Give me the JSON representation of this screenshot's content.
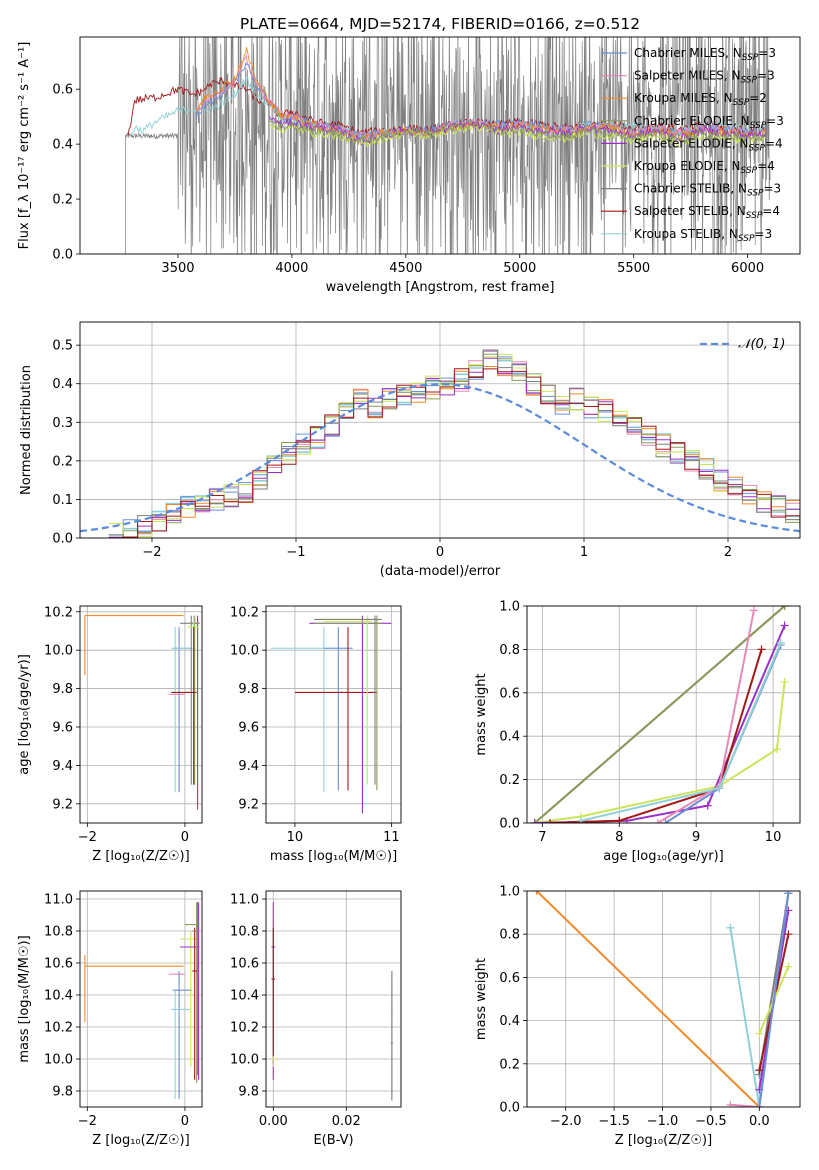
{
  "figure": {
    "title": "PLATE=0664, MJD=52174, FIBERID=0166, z=0.512"
  },
  "colors": {
    "chabrier_miles": "#6b8fd6",
    "salpeter_miles": "#e88ab8",
    "kroupa_miles": "#f08a2a",
    "chabrier_elodie": "#8a9a5b",
    "salpeter_elodie": "#9b30c8",
    "kroupa_elodie": "#c9e65a",
    "chabrier_stelib": "#7f7f7f",
    "salpeter_stelib": "#a01818",
    "kroupa_stelib": "#8fd0d8",
    "normal_curve": "#5b8bd9"
  },
  "chart_data": [
    {
      "id": "spectrum",
      "type": "line",
      "xlabel": "wavelength [Angstrom, rest frame]",
      "ylabel": "Flux [f_λ 10⁻¹⁷ erg cm⁻² s⁻¹ A⁻¹]",
      "xlim": [
        3070,
        6230
      ],
      "ylim": [
        0,
        0.79
      ],
      "xticks": [
        3500,
        4000,
        4500,
        5000,
        5500,
        6000
      ],
      "yticks": [
        0.0,
        0.2,
        0.4,
        0.6
      ],
      "grid": false,
      "legend_position": "top-right",
      "legend": [
        {
          "label": "Chabrier MILES, N",
          "sub": "SSP",
          "suffix": "=3",
          "color_key": "chabrier_miles"
        },
        {
          "label": "Salpeter MILES, N",
          "sub": "SSP",
          "suffix": "=3",
          "color_key": "salpeter_miles"
        },
        {
          "label": "Kroupa MILES, N",
          "sub": "SSP",
          "suffix": "=2",
          "color_key": "kroupa_miles"
        },
        {
          "label": "Chabrier ELODIE, N",
          "sub": "SSP",
          "suffix": "=3",
          "color_key": "chabrier_elodie"
        },
        {
          "label": "Salpeter ELODIE, N",
          "sub": "SSP",
          "suffix": "=4",
          "color_key": "salpeter_elodie"
        },
        {
          "label": "Kroupa ELODIE, N",
          "sub": "SSP",
          "suffix": "=4",
          "color_key": "kroupa_elodie"
        },
        {
          "label": "Chabrier STELIB, N",
          "sub": "SSP",
          "suffix": "=3",
          "color_key": "chabrier_stelib"
        },
        {
          "label": "Salpeter STELIB, N",
          "sub": "SSP",
          "suffix": "=4",
          "color_key": "salpeter_stelib"
        },
        {
          "label": "Kroupa STELIB, N",
          "sub": "SSP",
          "suffix": "=3",
          "color_key": "kroupa_stelib"
        }
      ],
      "models": [
        {
          "color_key": "salpeter_stelib",
          "x": [
            3280,
            3310,
            3400,
            3500,
            3560,
            3600,
            3650,
            3700,
            3750,
            3800,
            3850,
            3900,
            3950,
            4000,
            4100,
            4200,
            4300,
            4400,
            4500,
            4600,
            4700,
            4800,
            4900,
            5000,
            5100,
            5200,
            5300,
            5400,
            5500,
            5600,
            5700,
            5800,
            5900,
            6000,
            6080
          ],
          "y": [
            0.42,
            0.56,
            0.57,
            0.6,
            0.58,
            0.59,
            0.62,
            0.63,
            0.61,
            0.6,
            0.56,
            0.55,
            0.5,
            0.52,
            0.48,
            0.47,
            0.44,
            0.45,
            0.46,
            0.45,
            0.47,
            0.48,
            0.47,
            0.48,
            0.47,
            0.46,
            0.47,
            0.47,
            0.46,
            0.47,
            0.45,
            0.47,
            0.46,
            0.45,
            0.46
          ]
        },
        {
          "color_key": "kroupa_stelib",
          "x": [
            3280,
            3310,
            3350,
            3400,
            3500,
            3560,
            3600,
            3650,
            3700,
            3750,
            3800,
            3850,
            3900,
            3950,
            4000,
            4100,
            4200,
            4300,
            4400,
            4500,
            4600,
            4700,
            4800,
            4900,
            5000,
            5100,
            5200,
            5300,
            5400,
            5500,
            5600,
            5700,
            5800,
            5900,
            6000,
            6080
          ],
          "y": [
            0.42,
            0.46,
            0.45,
            0.48,
            0.52,
            0.53,
            0.52,
            0.53,
            0.55,
            0.58,
            0.64,
            0.57,
            0.55,
            0.5,
            0.49,
            0.47,
            0.46,
            0.43,
            0.44,
            0.45,
            0.44,
            0.47,
            0.48,
            0.46,
            0.47,
            0.46,
            0.45,
            0.47,
            0.47,
            0.46,
            0.46,
            0.44,
            0.47,
            0.47,
            0.45,
            0.46
          ]
        },
        {
          "color_key": "chabrier_miles",
          "x": [
            3580,
            3620,
            3700,
            3750,
            3800,
            3850,
            3900,
            3950,
            4000,
            4100,
            4200,
            4300,
            4400,
            4500,
            4600,
            4700,
            4800,
            4900,
            5000,
            5100,
            5200,
            5300,
            5400,
            5500,
            5600,
            5700,
            5800,
            5900,
            6000,
            6080
          ],
          "y": [
            0.5,
            0.55,
            0.58,
            0.62,
            0.7,
            0.6,
            0.56,
            0.5,
            0.5,
            0.47,
            0.46,
            0.43,
            0.44,
            0.45,
            0.45,
            0.47,
            0.48,
            0.47,
            0.48,
            0.47,
            0.45,
            0.47,
            0.46,
            0.44,
            0.46,
            0.44,
            0.46,
            0.46,
            0.44,
            0.45
          ]
        },
        {
          "color_key": "salpeter_miles",
          "x": [
            3580,
            3620,
            3700,
            3750,
            3800,
            3850,
            3900,
            3950,
            4000,
            4100,
            4200,
            4300,
            4400,
            4500,
            4600,
            4700,
            4800,
            4900,
            5000,
            5100,
            5200,
            5300,
            5400,
            5500,
            5600,
            5700,
            5800,
            5900,
            6000,
            6080
          ],
          "y": [
            0.52,
            0.56,
            0.6,
            0.63,
            0.71,
            0.61,
            0.56,
            0.51,
            0.5,
            0.47,
            0.46,
            0.43,
            0.44,
            0.45,
            0.44,
            0.47,
            0.48,
            0.46,
            0.47,
            0.46,
            0.45,
            0.46,
            0.46,
            0.44,
            0.46,
            0.44,
            0.46,
            0.45,
            0.44,
            0.45
          ]
        },
        {
          "color_key": "kroupa_miles",
          "x": [
            3580,
            3620,
            3700,
            3750,
            3800,
            3850,
            3900,
            3950,
            4000,
            4100,
            4200,
            4300,
            4400,
            4500,
            4600,
            4700,
            4800,
            4900,
            5000,
            5100,
            5200,
            5300,
            5400,
            5500,
            5600,
            5700,
            5800,
            5900,
            6000,
            6080
          ],
          "y": [
            0.52,
            0.57,
            0.61,
            0.64,
            0.74,
            0.62,
            0.56,
            0.5,
            0.5,
            0.47,
            0.45,
            0.42,
            0.44,
            0.45,
            0.44,
            0.46,
            0.47,
            0.46,
            0.47,
            0.46,
            0.44,
            0.46,
            0.46,
            0.43,
            0.45,
            0.43,
            0.45,
            0.45,
            0.43,
            0.44
          ]
        },
        {
          "color_key": "salpeter_elodie",
          "x": [
            3900,
            3950,
            4000,
            4100,
            4200,
            4300,
            4400,
            4500,
            4600,
            4700,
            4800,
            4900,
            5000,
            5100,
            5200,
            5300,
            5400,
            5500,
            5600,
            5700,
            5800,
            5900,
            6000,
            6080
          ],
          "y": [
            0.5,
            0.47,
            0.48,
            0.46,
            0.45,
            0.41,
            0.43,
            0.45,
            0.44,
            0.46,
            0.47,
            0.45,
            0.46,
            0.45,
            0.44,
            0.46,
            0.45,
            0.43,
            0.45,
            0.42,
            0.45,
            0.44,
            0.43,
            0.44
          ]
        },
        {
          "color_key": "kroupa_elodie",
          "x": [
            3900,
            3950,
            4000,
            4100,
            4200,
            4300,
            4400,
            4500,
            4600,
            4700,
            4800,
            4900,
            5000,
            5100,
            5200,
            5300,
            5400,
            5500,
            5600,
            5700,
            5800,
            5900,
            6000,
            6080
          ],
          "y": [
            0.48,
            0.45,
            0.46,
            0.44,
            0.43,
            0.4,
            0.42,
            0.44,
            0.43,
            0.45,
            0.46,
            0.44,
            0.44,
            0.43,
            0.42,
            0.44,
            0.43,
            0.41,
            0.43,
            0.4,
            0.43,
            0.42,
            0.41,
            0.42
          ]
        },
        {
          "color_key": "chabrier_elodie",
          "x": [
            3900,
            3950,
            4000,
            4100,
            4200,
            4300,
            4400,
            4500,
            4600,
            4700,
            4800,
            4900,
            5000,
            5100,
            5200,
            5300,
            5400,
            5500,
            5600,
            5700,
            5800,
            5900,
            6000,
            6080
          ],
          "y": [
            0.49,
            0.46,
            0.47,
            0.45,
            0.44,
            0.41,
            0.43,
            0.45,
            0.44,
            0.46,
            0.47,
            0.45,
            0.45,
            0.44,
            0.43,
            0.45,
            0.44,
            0.42,
            0.44,
            0.41,
            0.44,
            0.43,
            0.42,
            0.43
          ]
        }
      ],
      "noise_line": {
        "color_key": "chabrier_stelib",
        "x_range": [
          3270,
          6100
        ],
        "baseline": 0.45,
        "amplitude": 0.4
      }
    },
    {
      "id": "residuals",
      "type": "area",
      "xlabel": "(data-model)/error",
      "ylabel": "Normed distribution",
      "xlim": [
        -2.5,
        2.5
      ],
      "ylim": [
        0,
        0.56
      ],
      "xticks": [
        -2,
        -1,
        0,
        1,
        2
      ],
      "yticks": [
        0.0,
        0.1,
        0.2,
        0.3,
        0.4,
        0.5
      ],
      "grid": true,
      "legend_position": "top-right",
      "curve_label": "𝒩(0, 1)",
      "curve_color_key": "normal_curve",
      "bin_width": 0.1,
      "bin_start": -2.3,
      "base_hist": [
        0.01,
        0.02,
        0.03,
        0.04,
        0.06,
        0.08,
        0.09,
        0.1,
        0.11,
        0.12,
        0.15,
        0.19,
        0.22,
        0.24,
        0.26,
        0.29,
        0.33,
        0.36,
        0.34,
        0.36,
        0.37,
        0.38,
        0.39,
        0.4,
        0.41,
        0.44,
        0.46,
        0.45,
        0.43,
        0.4,
        0.37,
        0.35,
        0.36,
        0.34,
        0.33,
        0.31,
        0.29,
        0.27,
        0.24,
        0.22,
        0.2,
        0.18,
        0.15,
        0.13,
        0.11,
        0.09,
        0.08,
        0.07,
        0.05,
        0.04
      ]
    },
    {
      "id": "age_vs_Z",
      "type": "scatter",
      "xlabel": "Z [log₁₀(Z/Z☉)]",
      "ylabel": "age  [log₁₀(age/yr)]",
      "xlim": [
        -2.15,
        0.35
      ],
      "ylim": [
        9.1,
        10.23
      ],
      "xticks": [
        -2,
        0
      ],
      "yticks": [
        9.2,
        9.4,
        9.6,
        9.8,
        10.0,
        10.2
      ],
      "grid": true
    },
    {
      "id": "age_vs_mass",
      "type": "scatter",
      "xlabel": "mass [log₁₀(M/M☉)]",
      "ylabel": "",
      "xlim": [
        9.7,
        11.1
      ],
      "ylim": [
        9.1,
        10.23
      ],
      "xticks": [
        10,
        11
      ],
      "yticks": [
        9.2,
        9.4,
        9.6,
        9.8,
        10.0,
        10.2
      ],
      "grid": true
    },
    {
      "id": "mass_weight_vs_age",
      "type": "line",
      "xlabel": "age  [log₁₀(age/yr)]",
      "ylabel": "mass weight",
      "xlim": [
        6.8,
        10.35
      ],
      "ylim": [
        0,
        1.0
      ],
      "xticks": [
        7,
        8,
        9,
        10
      ],
      "yticks": [
        0.0,
        0.2,
        0.4,
        0.6,
        0.8,
        1.0
      ],
      "grid": true,
      "series": [
        {
          "color_key": "chabrier_stelib",
          "x": [
            6.9,
            10.15
          ],
          "y": [
            0.0,
            1.0
          ]
        },
        {
          "color_key": "chabrier_elodie",
          "x": [
            6.9,
            10.15
          ],
          "y": [
            0.0,
            1.0
          ]
        },
        {
          "color_key": "kroupa_elodie",
          "x": [
            6.9,
            7.5,
            9.3,
            10.05,
            10.15
          ],
          "y": [
            0.0,
            0.03,
            0.17,
            0.34,
            0.65
          ]
        },
        {
          "color_key": "salpeter_elodie",
          "x": [
            6.9,
            8.1,
            9.15,
            10.15
          ],
          "y": [
            0.0,
            0.01,
            0.08,
            0.91
          ]
        },
        {
          "color_key": "salpeter_stelib",
          "x": [
            7.1,
            8.0,
            9.3,
            9.85
          ],
          "y": [
            0.0,
            0.01,
            0.16,
            0.8
          ]
        },
        {
          "color_key": "chabrier_miles",
          "x": [
            8.6,
            9.3,
            10.1
          ],
          "y": [
            0.0,
            0.16,
            0.82
          ]
        },
        {
          "color_key": "salpeter_miles",
          "x": [
            8.5,
            9.3,
            9.75
          ],
          "y": [
            0.0,
            0.17,
            0.98
          ]
        },
        {
          "color_key": "kroupa_stelib",
          "x": [
            7.5,
            9.3,
            10.1
          ],
          "y": [
            0.01,
            0.16,
            0.83
          ]
        }
      ]
    },
    {
      "id": "mass_vs_Z",
      "type": "scatter",
      "xlabel": "Z [log₁₀(Z/Z☉)]",
      "ylabel": "mass [log₁₀(M/M☉)]",
      "xlim": [
        -2.15,
        0.35
      ],
      "ylim": [
        9.7,
        11.05
      ],
      "xticks": [
        -2,
        0
      ],
      "yticks": [
        9.8,
        10.0,
        10.2,
        10.4,
        10.6,
        10.8,
        11.0
      ],
      "grid": true
    },
    {
      "id": "mass_vs_ebv",
      "type": "scatter",
      "xlabel": "E(B-V)",
      "ylabel": "",
      "xlim": [
        -0.002,
        0.035
      ],
      "ylim": [
        9.7,
        11.05
      ],
      "xticks": [
        0.0,
        0.02
      ],
      "yticks": [
        9.8,
        10.0,
        10.2,
        10.4,
        10.6,
        10.8,
        11.0
      ],
      "grid": true
    },
    {
      "id": "mass_weight_vs_Z",
      "type": "line",
      "xlabel": "Z [log₁₀(Z/Z☉)]",
      "ylabel": "mass weight",
      "xlim": [
        -2.4,
        0.42
      ],
      "ylim": [
        0,
        1.0
      ],
      "xticks": [
        -2.0,
        -1.5,
        -1.0,
        -0.5,
        0.0
      ],
      "yticks": [
        0.0,
        0.2,
        0.4,
        0.6,
        0.8,
        1.0
      ],
      "grid": true,
      "series": [
        {
          "color_key": "kroupa_miles",
          "x": [
            -2.3,
            0.0
          ],
          "y": [
            1.0,
            0.0
          ]
        },
        {
          "color_key": "salpeter_miles",
          "x": [
            -0.3,
            0.0
          ],
          "y": [
            0.01,
            0.0
          ]
        },
        {
          "color_key": "kroupa_stelib",
          "x": [
            -0.3,
            0.0,
            0.3
          ],
          "y": [
            0.83,
            0.0,
            0.99
          ]
        },
        {
          "color_key": "chabrier_stelib",
          "x": [
            0.0,
            0.3
          ],
          "y": [
            0.15,
            0.99
          ]
        },
        {
          "color_key": "salpeter_elodie",
          "x": [
            0.0,
            0.3
          ],
          "y": [
            0.08,
            0.91
          ]
        },
        {
          "color_key": "salpeter_stelib",
          "x": [
            0.0,
            0.3
          ],
          "y": [
            0.17,
            0.8
          ]
        },
        {
          "color_key": "kroupa_elodie",
          "x": [
            0.0,
            0.3
          ],
          "y": [
            0.34,
            0.65
          ]
        },
        {
          "color_key": "chabrier_miles",
          "x": [
            0.0,
            0.3
          ],
          "y": [
            0.0,
            0.99
          ]
        }
      ]
    }
  ]
}
